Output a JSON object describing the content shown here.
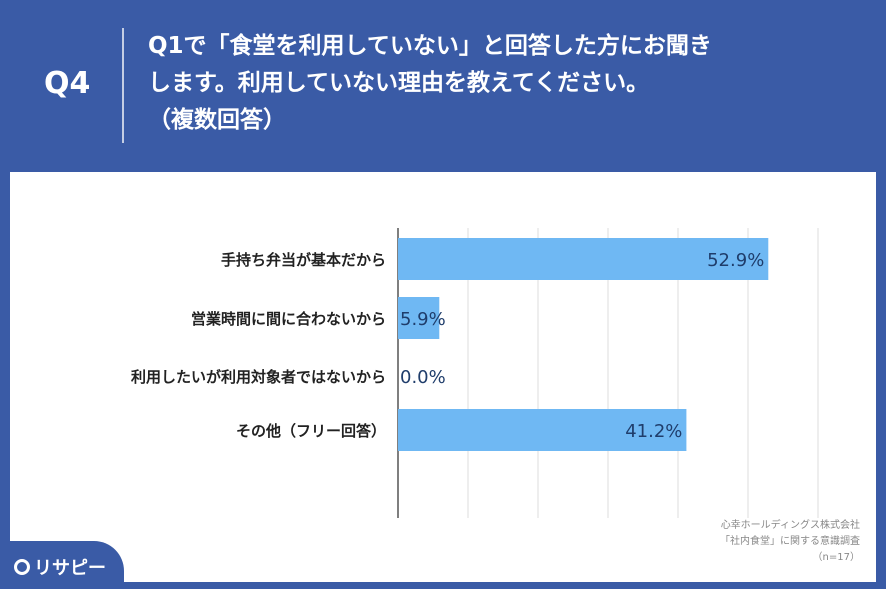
{
  "header": {
    "q_number": "Q4",
    "question_lines": [
      "Q1で「食堂を利用していない」と回答した方にお聞き",
      "します。利用していない理由を教えてください。",
      "（複数回答）"
    ]
  },
  "chart_data": {
    "type": "bar",
    "orientation": "horizontal",
    "categories": [
      "手持ち弁当が基本だから",
      "営業時間に間に合わないから",
      "利用したいが利用対象者ではないから",
      "その他（フリー回答）"
    ],
    "values": [
      52.9,
      5.9,
      0.0,
      41.2
    ],
    "value_labels": [
      "52.9%",
      "5.9%",
      "0.0%",
      "41.2%"
    ],
    "xlim": [
      0,
      60
    ],
    "grid": true,
    "bar_color": "#6fb8f3"
  },
  "source": {
    "line1": "心幸ホールディングス株式会社",
    "line2": "「社内食堂」に関する意識調査",
    "line3": "（n=17）"
  },
  "logo": {
    "text": "リサピー"
  },
  "colors": {
    "background": "#3a5ba6",
    "panel": "#ffffff",
    "bar": "#6fb8f3"
  }
}
